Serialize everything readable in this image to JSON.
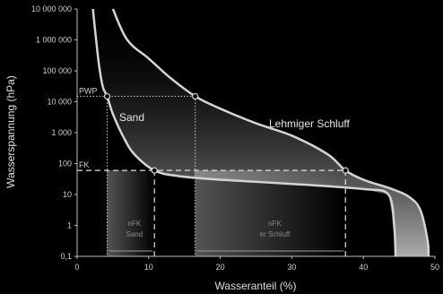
{
  "chart_data": {
    "type": "line",
    "xlabel": "Wasseranteil (%)",
    "ylabel": "Wasserspannung (hPa)",
    "xlim": [
      0,
      50
    ],
    "ylim": [
      0.1,
      10000000
    ],
    "y_scale": "log",
    "x_ticks": [
      "0",
      "10",
      "20",
      "30",
      "40",
      "50"
    ],
    "y_ticks": [
      "0,1",
      "1",
      "10",
      "100",
      "1 000",
      "10 000",
      "100 000",
      "1 000 000",
      "10 000 000"
    ],
    "series": [
      {
        "name": "Sand",
        "points": [
          [
            2.2,
            10000000
          ],
          [
            3.0,
            200000
          ],
          [
            3.6,
            30000
          ],
          [
            4.2,
            15000
          ],
          [
            5.0,
            4000
          ],
          [
            6.5,
            700
          ],
          [
            8.0,
            200
          ],
          [
            10.8,
            60
          ],
          [
            14,
            40
          ],
          [
            20,
            30
          ],
          [
            30,
            22
          ],
          [
            40,
            15
          ],
          [
            43.5,
            10
          ],
          [
            44.3,
            1
          ],
          [
            44.5,
            0.1
          ]
        ]
      },
      {
        "name": "Lehmiger Schluff",
        "points": [
          [
            5.0,
            10000000
          ],
          [
            7,
            1000000
          ],
          [
            10,
            250000
          ],
          [
            13,
            60000
          ],
          [
            16.5,
            15000
          ],
          [
            20,
            6000
          ],
          [
            25,
            2000
          ],
          [
            30,
            800
          ],
          [
            35,
            200
          ],
          [
            37.5,
            60
          ],
          [
            40,
            30
          ],
          [
            44,
            15
          ],
          [
            46.5,
            8
          ],
          [
            48,
            3
          ],
          [
            49,
            0.3
          ],
          [
            49.1,
            0.1
          ]
        ]
      }
    ],
    "reference_lines": [
      {
        "label": "PWP",
        "value": 15000
      },
      {
        "label": "FK",
        "value": 60
      }
    ],
    "markers": [
      [
        4.2,
        15000
      ],
      [
        16.5,
        15000
      ],
      [
        10.8,
        60
      ],
      [
        37.5,
        60
      ]
    ],
    "regions": [
      {
        "label_line1": "nFK",
        "label_line2": "Sand",
        "x0": 4.2,
        "x1": 10.8
      },
      {
        "label_line1": "nFK",
        "label_line2": "er Schluff",
        "x0": 16.5,
        "x1": 37.5
      }
    ],
    "annotations": [
      "Sand",
      "Lehmiger Schluff"
    ]
  }
}
